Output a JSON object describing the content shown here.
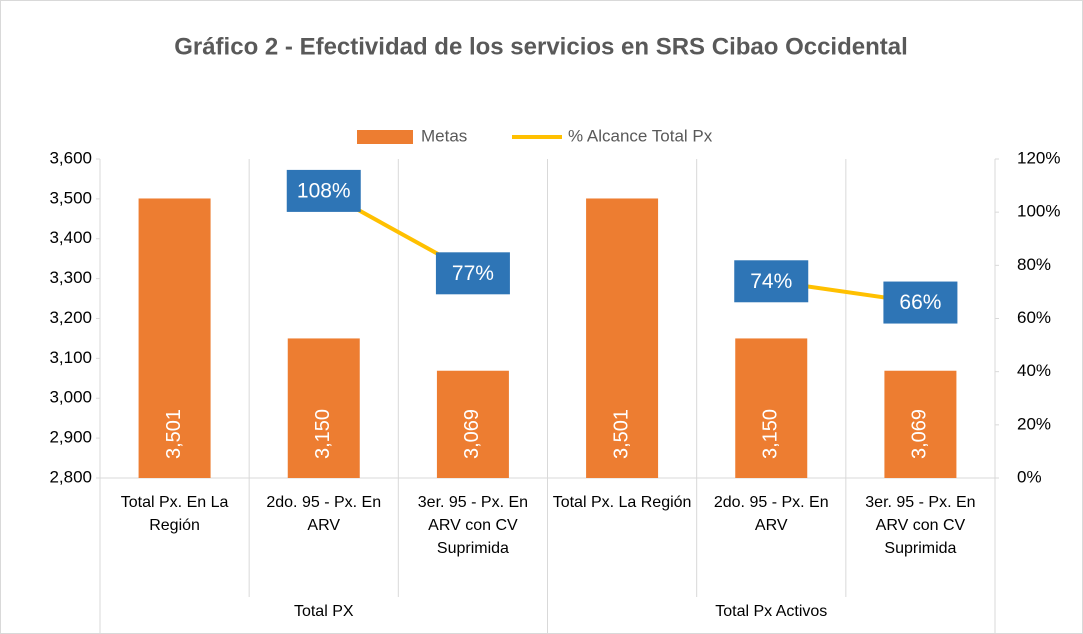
{
  "chart_data": {
    "type": "bar_line",
    "title": "Gráfico 2 - Efectividad de los servicios en SRS Cibao Occidental",
    "categories": [
      "Total Px. En La Región",
      "2do. 95 - Px. En ARV",
      "3er. 95 - Px. En ARV con CV Suprimida",
      "Total Px. La Región",
      "2do. 95 - Px. En ARV",
      "3er. 95 - Px. En ARV con CV Suprimida"
    ],
    "groups": [
      {
        "name": "Total PX",
        "size": 3
      },
      {
        "name": "Total Px Activos",
        "size": 3
      }
    ],
    "series": [
      {
        "name": "Metas",
        "type": "bar",
        "color": "#ED7D31",
        "values": [
          3501,
          3150,
          3069,
          3501,
          3150,
          3069
        ],
        "value_labels": [
          "3,501",
          "3,150",
          "3,069",
          "3,501",
          "3,150",
          "3,069"
        ]
      },
      {
        "name": "% Alcance Total Px",
        "type": "line",
        "axis": "y2",
        "color": "#FFC000",
        "values": [
          null,
          108,
          77,
          null,
          74,
          66
        ],
        "value_labels": [
          null,
          "108%",
          "77%",
          null,
          "74%",
          "66%"
        ]
      }
    ],
    "ylim": [
      2800,
      3600
    ],
    "yticks": [
      {
        "value": 2800,
        "label": "2,800"
      },
      {
        "value": 2900,
        "label": "2,900"
      },
      {
        "value": 3000,
        "label": "3,000"
      },
      {
        "value": 3100,
        "label": "3,100"
      },
      {
        "value": 3200,
        "label": "3,200"
      },
      {
        "value": 3300,
        "label": "3,300"
      },
      {
        "value": 3400,
        "label": "3,400"
      },
      {
        "value": 3500,
        "label": "3,500"
      },
      {
        "value": 3600,
        "label": "3,600"
      }
    ],
    "y2lim": [
      0,
      120
    ],
    "y2ticks": [
      {
        "value": 0,
        "label": "0%"
      },
      {
        "value": 20,
        "label": "20%"
      },
      {
        "value": 40,
        "label": "40%"
      },
      {
        "value": 60,
        "label": "60%"
      },
      {
        "value": 80,
        "label": "80%"
      },
      {
        "value": 100,
        "label": "100%"
      },
      {
        "value": 120,
        "label": "120%"
      }
    ],
    "legend": "top"
  }
}
